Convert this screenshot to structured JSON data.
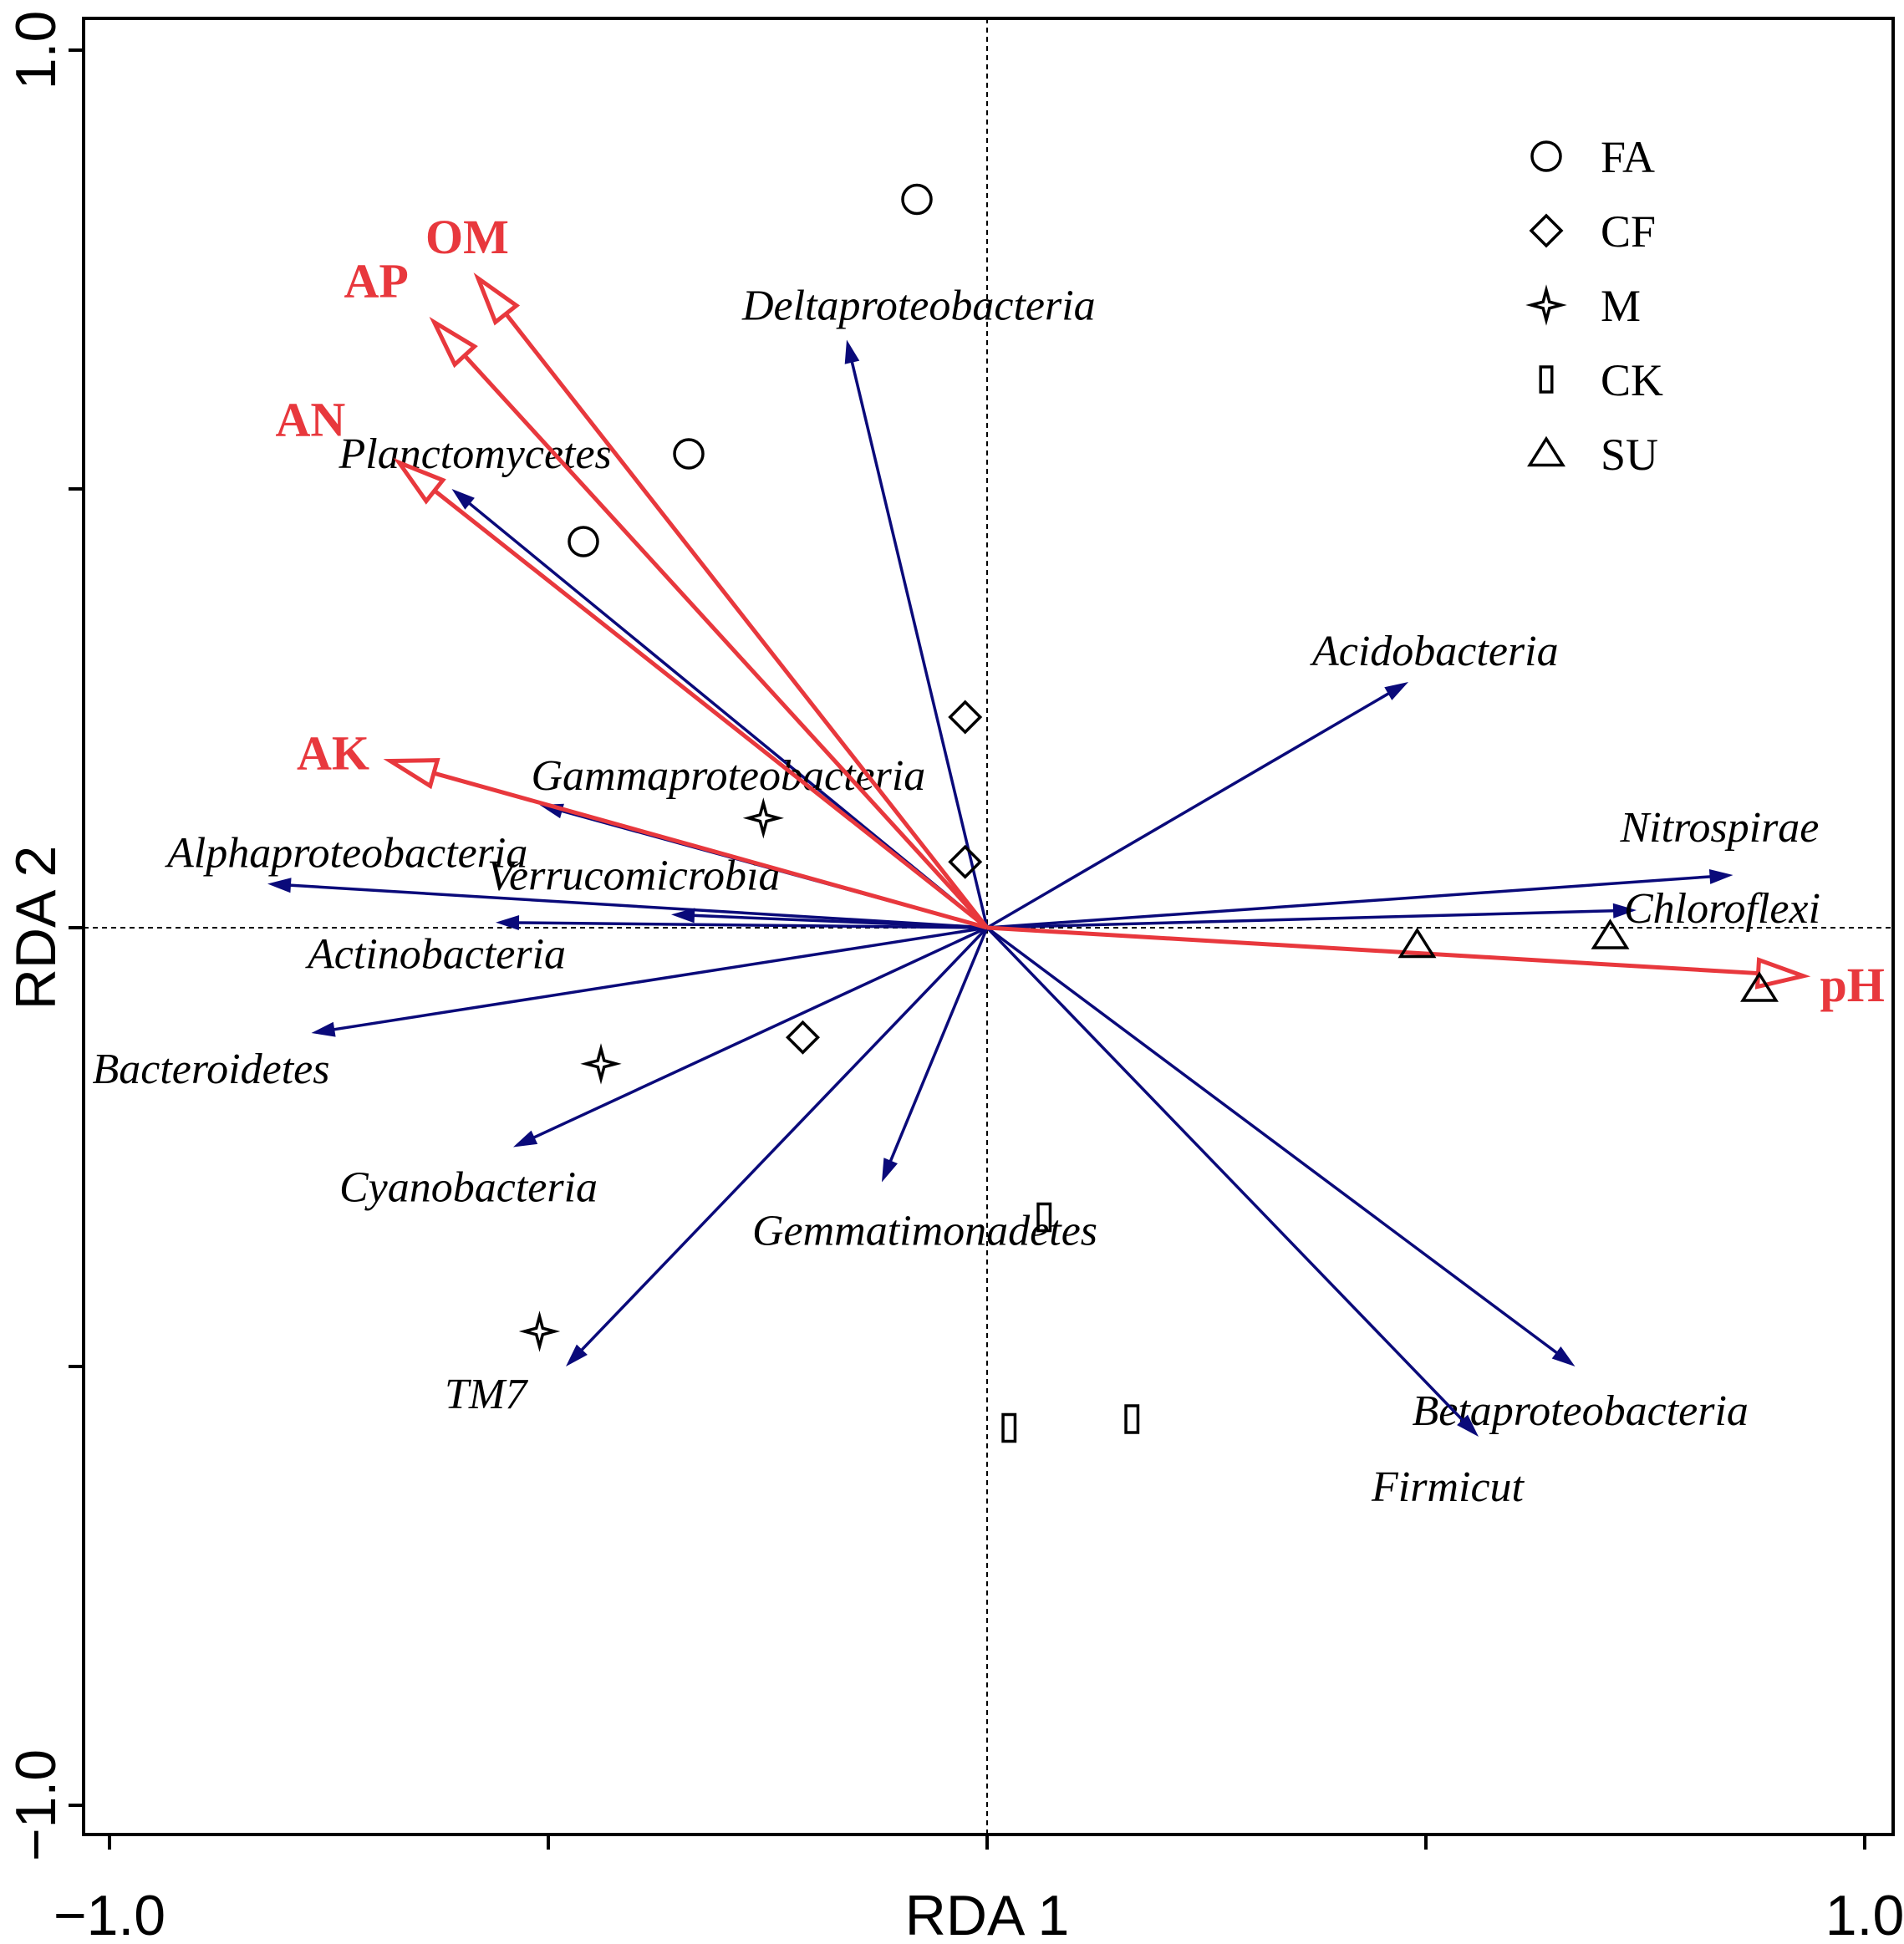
{
  "chart_data": {
    "type": "scatter",
    "subtype": "RDA biplot",
    "xlabel": "RDA 1",
    "ylabel": "RDA 2",
    "xlim": [
      -1.0,
      1.0
    ],
    "ylim": [
      -1.0,
      1.0
    ],
    "x_tick_labels": [
      {
        "value": -1.0,
        "label": "−1.0"
      },
      {
        "value": 1.0,
        "label": "1.0"
      }
    ],
    "y_tick_labels": [
      {
        "value": 1.0,
        "label": "1.0"
      },
      {
        "value": -1.0,
        "label": "−1.0"
      }
    ],
    "x_ticks": [
      -1.0,
      -0.5,
      0.0,
      0.5,
      1.0
    ],
    "y_ticks": [
      -1.0,
      -0.5,
      0.0,
      0.5,
      1.0
    ],
    "zero_lines": true,
    "legend_position": "top-right",
    "colors": {
      "environment": "#e8383d",
      "species": "#0a0a7a",
      "sites": "#000000"
    },
    "legend": [
      {
        "name": "FA",
        "marker": "circle"
      },
      {
        "name": "CF",
        "marker": "diamond"
      },
      {
        "name": "M",
        "marker": "star"
      },
      {
        "name": "CK",
        "marker": "rectangle"
      },
      {
        "name": "SU",
        "marker": "triangle"
      }
    ],
    "environment_vectors": [
      {
        "label": "OM",
        "x": -0.58,
        "y": 0.74
      },
      {
        "label": "AP",
        "x": -0.63,
        "y": 0.69
      },
      {
        "label": "AN",
        "x": -0.67,
        "y": 0.53
      },
      {
        "label": "AK",
        "x": -0.68,
        "y": 0.19
      },
      {
        "label": "pH",
        "x": 0.93,
        "y": -0.055
      }
    ],
    "species_vectors": [
      {
        "label": "Deltaproteobacteria",
        "x": -0.16,
        "y": 0.67
      },
      {
        "label": "Planctomycetes",
        "x": -0.61,
        "y": 0.5
      },
      {
        "label": "Gammaproteobacteria",
        "x": -0.51,
        "y": 0.14
      },
      {
        "label": "Alphaproteobacteria",
        "x": -0.82,
        "y": 0.05
      },
      {
        "label": "Verrucomicrobia",
        "x": -0.36,
        "y": 0.015
      },
      {
        "label": "Actinobacteria",
        "x": -0.56,
        "y": 0.006
      },
      {
        "label": "Bacteroidetes",
        "x": -0.77,
        "y": -0.12
      },
      {
        "label": "Cyanobacteria",
        "x": -0.54,
        "y": -0.25
      },
      {
        "label": "TM7",
        "x": -0.48,
        "y": -0.5
      },
      {
        "label": "Gemmatimonadetes",
        "x": -0.12,
        "y": -0.29
      },
      {
        "label": "Acidobacteria",
        "x": 0.48,
        "y": 0.28
      },
      {
        "label": "Nitrospirae",
        "x": 0.85,
        "y": 0.06
      },
      {
        "label": "Chloroflexi",
        "x": 0.74,
        "y": 0.02
      },
      {
        "label": "Betaproteobacteria",
        "x": 0.67,
        "y": -0.5
      },
      {
        "label": "Firmicut",
        "x": 0.56,
        "y": -0.58
      }
    ],
    "sites": [
      {
        "group": "FA",
        "x": -0.08,
        "y": 0.83
      },
      {
        "group": "FA",
        "x": -0.34,
        "y": 0.54
      },
      {
        "group": "FA",
        "x": -0.46,
        "y": 0.44
      },
      {
        "group": "CF",
        "x": -0.025,
        "y": 0.24
      },
      {
        "group": "CF",
        "x": -0.025,
        "y": 0.075
      },
      {
        "group": "CF",
        "x": -0.21,
        "y": -0.125
      },
      {
        "group": "M",
        "x": -0.255,
        "y": 0.125
      },
      {
        "group": "M",
        "x": -0.44,
        "y": -0.155
      },
      {
        "group": "M",
        "x": -0.51,
        "y": -0.46
      },
      {
        "group": "CK",
        "x": 0.065,
        "y": -0.33
      },
      {
        "group": "CK",
        "x": 0.165,
        "y": -0.56
      },
      {
        "group": "CK",
        "x": 0.025,
        "y": -0.57
      },
      {
        "group": "SU",
        "x": 0.49,
        "y": -0.02
      },
      {
        "group": "SU",
        "x": 0.71,
        "y": -0.01
      },
      {
        "group": "SU",
        "x": 0.88,
        "y": -0.07
      }
    ]
  }
}
